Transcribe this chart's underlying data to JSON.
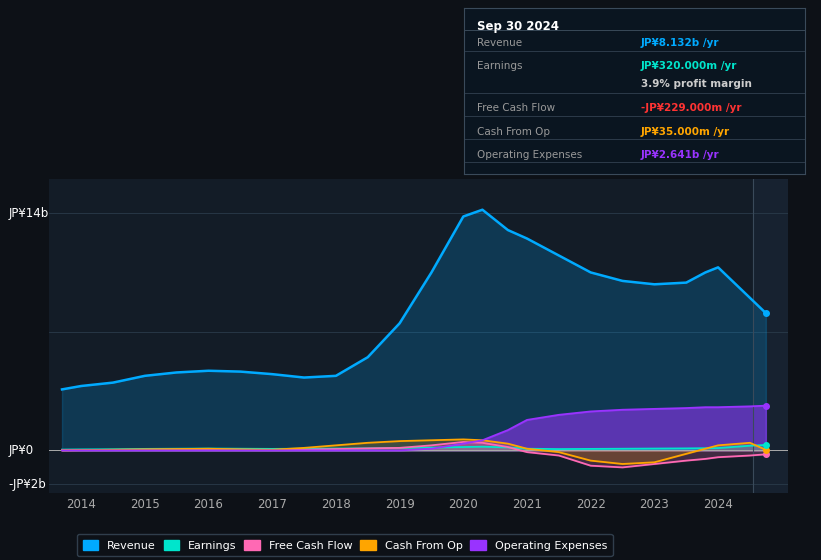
{
  "background_color": "#0d1117",
  "plot_bg_color": "#131c27",
  "ylabel_top": "JP¥14b",
  "ylabel_zero": "JP¥0",
  "ylabel_neg": "-JP¥2b",
  "legend": [
    "Revenue",
    "Earnings",
    "Free Cash Flow",
    "Cash From Op",
    "Operating Expenses"
  ],
  "legend_colors": [
    "#00aaff",
    "#00e5cc",
    "#ff69b4",
    "#ffa500",
    "#9933ff"
  ],
  "info_box": {
    "date": "Sep 30 2024",
    "rows": [
      {
        "label": "Revenue",
        "value": "JP¥8.132b /yr",
        "value_color": "#00aaff"
      },
      {
        "label": "Earnings",
        "value": "JP¥320.000m /yr",
        "value_color": "#00e5cc"
      },
      {
        "label": "",
        "value": "3.9% profit margin",
        "value_color": "#cccccc"
      },
      {
        "label": "Free Cash Flow",
        "value": "-JP¥229.000m /yr",
        "value_color": "#ff3333"
      },
      {
        "label": "Cash From Op",
        "value": "JP¥35.000m /yr",
        "value_color": "#ffa500"
      },
      {
        "label": "Operating Expenses",
        "value": "JP¥2.641b /yr",
        "value_color": "#9933ff"
      }
    ]
  },
  "x_years": [
    2013.7,
    2014.0,
    2014.5,
    2015.0,
    2015.5,
    2016.0,
    2016.5,
    2017.0,
    2017.5,
    2018.0,
    2018.5,
    2019.0,
    2019.5,
    2020.0,
    2020.3,
    2020.7,
    2021.0,
    2021.5,
    2022.0,
    2022.5,
    2023.0,
    2023.5,
    2023.8,
    2024.0,
    2024.5,
    2024.75
  ],
  "revenue": [
    3.6,
    3.8,
    4.0,
    4.4,
    4.6,
    4.7,
    4.65,
    4.5,
    4.3,
    4.4,
    5.5,
    7.5,
    10.5,
    13.8,
    14.2,
    13.0,
    12.5,
    11.5,
    10.5,
    10.0,
    9.8,
    9.9,
    10.5,
    10.8,
    9.0,
    8.1
  ],
  "earnings": [
    0.05,
    0.06,
    0.07,
    0.09,
    0.1,
    0.11,
    0.1,
    0.09,
    0.1,
    0.11,
    0.12,
    0.15,
    0.17,
    0.2,
    0.22,
    0.18,
    0.1,
    0.08,
    0.09,
    0.1,
    0.11,
    0.12,
    0.13,
    0.14,
    0.28,
    0.32
  ],
  "free_cash_flow": [
    0.01,
    0.02,
    0.03,
    0.04,
    0.05,
    0.06,
    0.04,
    0.02,
    0.04,
    0.08,
    0.12,
    0.15,
    0.3,
    0.5,
    0.45,
    0.2,
    -0.1,
    -0.3,
    -0.9,
    -1.0,
    -0.8,
    -0.6,
    -0.5,
    -0.4,
    -0.3,
    -0.23
  ],
  "cash_from_op": [
    0.01,
    0.02,
    0.04,
    0.06,
    0.08,
    0.1,
    0.06,
    0.04,
    0.15,
    0.3,
    0.45,
    0.55,
    0.6,
    0.65,
    0.6,
    0.4,
    0.1,
    -0.1,
    -0.6,
    -0.8,
    -0.7,
    -0.2,
    0.1,
    0.3,
    0.45,
    0.035
  ],
  "operating_expenses": [
    0.0,
    0.0,
    0.0,
    0.0,
    0.0,
    0.0,
    0.0,
    0.0,
    0.0,
    0.0,
    0.0,
    0.0,
    0.1,
    0.4,
    0.6,
    1.2,
    1.8,
    2.1,
    2.3,
    2.4,
    2.45,
    2.5,
    2.55,
    2.55,
    2.6,
    2.641
  ],
  "ylim": [
    -2.5,
    16.0
  ],
  "xlim": [
    2013.5,
    2025.1
  ],
  "x_tick_years": [
    2014,
    2015,
    2016,
    2017,
    2018,
    2019,
    2020,
    2021,
    2022,
    2023,
    2024
  ],
  "yticks": [
    14.0,
    7.0,
    0.0,
    -2.0
  ],
  "grid_color": "#2a3a4a",
  "zero_line_color": "#aaaaaa",
  "shade_x_start": 2024.55
}
